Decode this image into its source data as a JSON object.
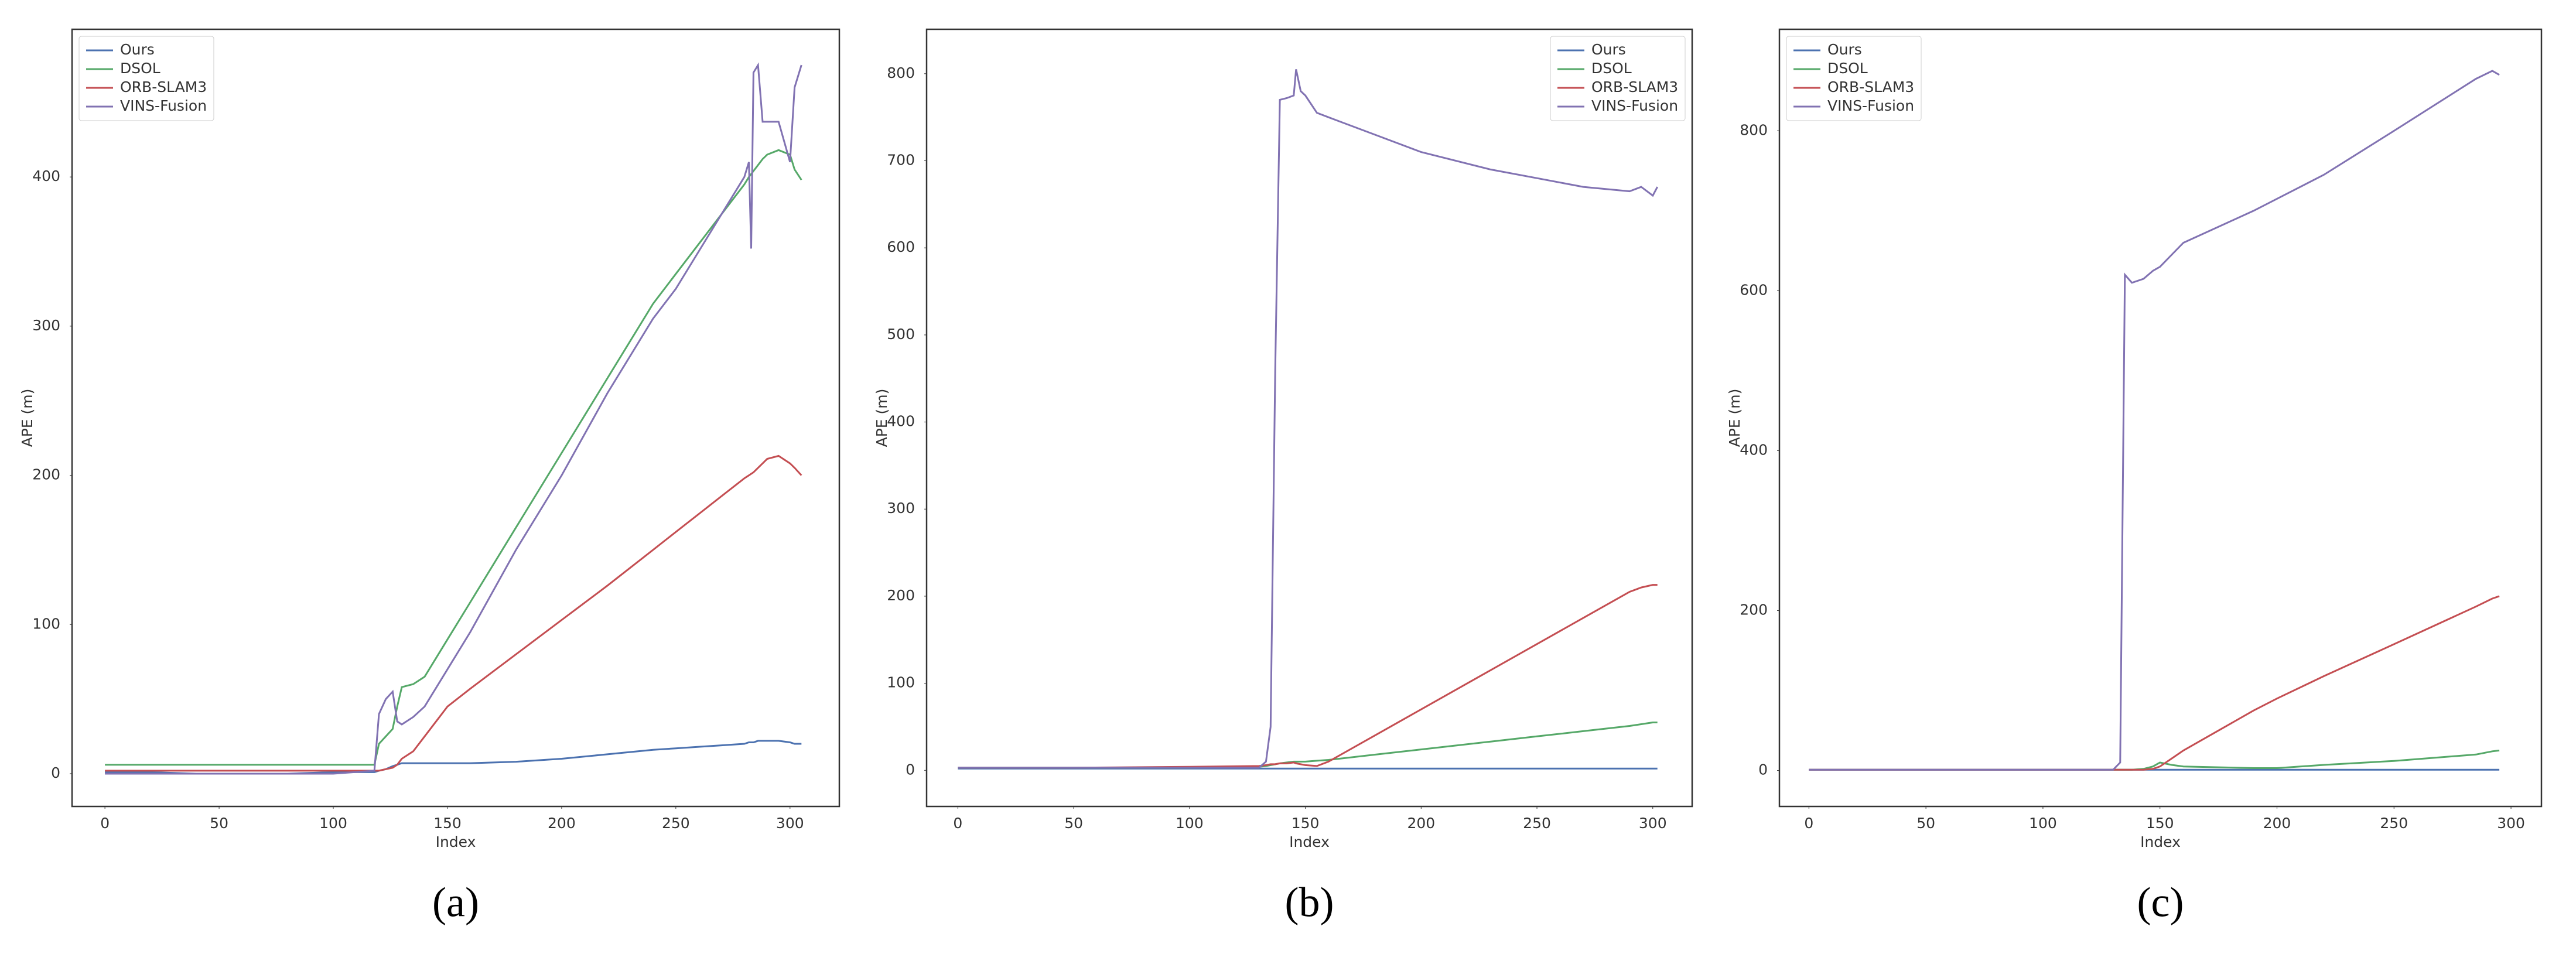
{
  "chart_data": [
    {
      "type": "line",
      "caption": "(a)",
      "xlabel": "Index",
      "ylabel": "APE (m)",
      "legend": "upper-left",
      "grid": false,
      "xlim": [
        -14.4,
        321.6
      ],
      "ylim": [
        -22,
        499
      ],
      "xticks": [
        0,
        50,
        100,
        150,
        200,
        250,
        300
      ],
      "yticks": [
        0,
        100,
        200,
        300,
        400
      ],
      "x": [
        0,
        20,
        40,
        60,
        80,
        100,
        118,
        120,
        123,
        126,
        128,
        130,
        135,
        140,
        150,
        160,
        180,
        200,
        220,
        240,
        250,
        260,
        270,
        280,
        282,
        283,
        284,
        286,
        288,
        290,
        295,
        300,
        302,
        305
      ],
      "series": [
        {
          "name": "Ours",
          "color": "#4c72b0",
          "values": [
            1,
            1,
            0,
            0,
            0,
            1,
            1,
            2,
            3,
            5,
            6,
            7,
            7,
            7,
            7,
            7,
            8,
            10,
            13,
            16,
            17,
            18,
            19,
            20,
            21,
            21,
            21,
            22,
            22,
            22,
            22,
            21,
            20,
            20
          ]
        },
        {
          "name": "DSOL",
          "color": "#55a868",
          "values": [
            6,
            6,
            6,
            6,
            6,
            6,
            6,
            20,
            25,
            30,
            45,
            58,
            60,
            65,
            90,
            115,
            165,
            215,
            265,
            315,
            335,
            355,
            375,
            395,
            400,
            402,
            404,
            408,
            412,
            415,
            418,
            415,
            405,
            398
          ]
        },
        {
          "name": "ORB-SLAM3",
          "color": "#c44e52",
          "values": [
            2,
            2,
            2,
            2,
            2,
            2,
            2,
            2,
            3,
            4,
            6,
            10,
            15,
            25,
            45,
            57,
            80,
            103,
            126,
            150,
            162,
            174,
            186,
            198,
            200,
            201,
            202,
            205,
            208,
            211,
            213,
            208,
            205,
            200
          ]
        },
        {
          "name": "VINS-Fusion",
          "color": "#8172b2",
          "values": [
            0,
            0,
            0,
            0,
            0,
            0,
            2,
            40,
            50,
            55,
            35,
            33,
            38,
            45,
            70,
            95,
            150,
            200,
            255,
            305,
            325,
            350,
            375,
            400,
            410,
            352,
            470,
            475,
            437,
            437,
            437,
            410,
            460,
            475
          ]
        }
      ]
    },
    {
      "type": "line",
      "caption": "(b)",
      "xlabel": "Index",
      "ylabel": "APE (m)",
      "legend": "upper-right",
      "grid": false,
      "xlim": [
        -13.5,
        317
      ],
      "ylim": [
        -41.5,
        851
      ],
      "xticks": [
        0,
        50,
        100,
        150,
        200,
        250,
        300
      ],
      "yticks": [
        0,
        100,
        200,
        300,
        400,
        500,
        600,
        700,
        800
      ],
      "x": [
        0,
        20,
        50,
        100,
        130,
        133,
        135,
        137,
        139,
        142,
        145,
        146,
        148,
        150,
        155,
        160,
        180,
        200,
        230,
        250,
        270,
        290,
        295,
        300,
        302
      ],
      "series": [
        {
          "name": "Ours",
          "color": "#4c72b0",
          "values": [
            2,
            2,
            2,
            2,
            2,
            2,
            2,
            2,
            2,
            2,
            2,
            2,
            2,
            2,
            2,
            2,
            2,
            2,
            2,
            2,
            2,
            2,
            2,
            2,
            2
          ]
        },
        {
          "name": "DSOL",
          "color": "#55a868",
          "values": [
            3,
            3,
            3,
            3,
            4,
            5,
            6,
            7,
            8,
            9,
            10,
            10,
            10,
            10,
            11,
            12,
            18,
            24,
            33,
            39,
            45,
            51,
            53,
            55,
            55
          ]
        },
        {
          "name": "ORB-SLAM3",
          "color": "#c44e52",
          "values": [
            3,
            3,
            3,
            4,
            5,
            6,
            7,
            7,
            8,
            8,
            9,
            8,
            7,
            6,
            5,
            10,
            40,
            70,
            115,
            145,
            175,
            205,
            210,
            213,
            213
          ]
        },
        {
          "name": "VINS-Fusion",
          "color": "#8172b2",
          "values": [
            3,
            3,
            3,
            3,
            3,
            10,
            50,
            460,
            770,
            772,
            775,
            805,
            780,
            775,
            755,
            750,
            730,
            710,
            690,
            680,
            670,
            665,
            670,
            660,
            670
          ]
        }
      ]
    },
    {
      "type": "line",
      "caption": "(c)",
      "xlabel": "Index",
      "ylabel": "APE (m)",
      "legend": "upper-left",
      "grid": false,
      "xlim": [
        -12.6,
        313
      ],
      "ylim": [
        -45,
        927
      ],
      "xticks": [
        0,
        50,
        100,
        150,
        200,
        250,
        300
      ],
      "yticks": [
        0,
        200,
        400,
        600,
        800
      ],
      "x": [
        0,
        20,
        50,
        100,
        130,
        133,
        135,
        138,
        143,
        147,
        150,
        155,
        160,
        190,
        200,
        220,
        250,
        285,
        292,
        295
      ],
      "series": [
        {
          "name": "Ours",
          "color": "#4c72b0",
          "values": [
            1,
            1,
            1,
            1,
            1,
            1,
            1,
            1,
            1,
            1,
            1,
            1,
            1,
            1,
            1,
            1,
            1,
            1,
            1,
            1
          ]
        },
        {
          "name": "DSOL",
          "color": "#55a868",
          "values": [
            1,
            1,
            1,
            1,
            1,
            1,
            1,
            1,
            2,
            5,
            10,
            7,
            5,
            3,
            3,
            7,
            12,
            20,
            24,
            25
          ]
        },
        {
          "name": "ORB-SLAM3",
          "color": "#c44e52",
          "values": [
            1,
            1,
            1,
            1,
            1,
            1,
            1,
            1,
            1,
            2,
            5,
            15,
            25,
            75,
            90,
            118,
            158,
            205,
            215,
            218
          ]
        },
        {
          "name": "VINS-Fusion",
          "color": "#8172b2",
          "values": [
            1,
            1,
            1,
            1,
            1,
            10,
            620,
            610,
            615,
            625,
            630,
            645,
            660,
            700,
            715,
            745,
            800,
            865,
            875,
            870
          ]
        }
      ]
    }
  ]
}
